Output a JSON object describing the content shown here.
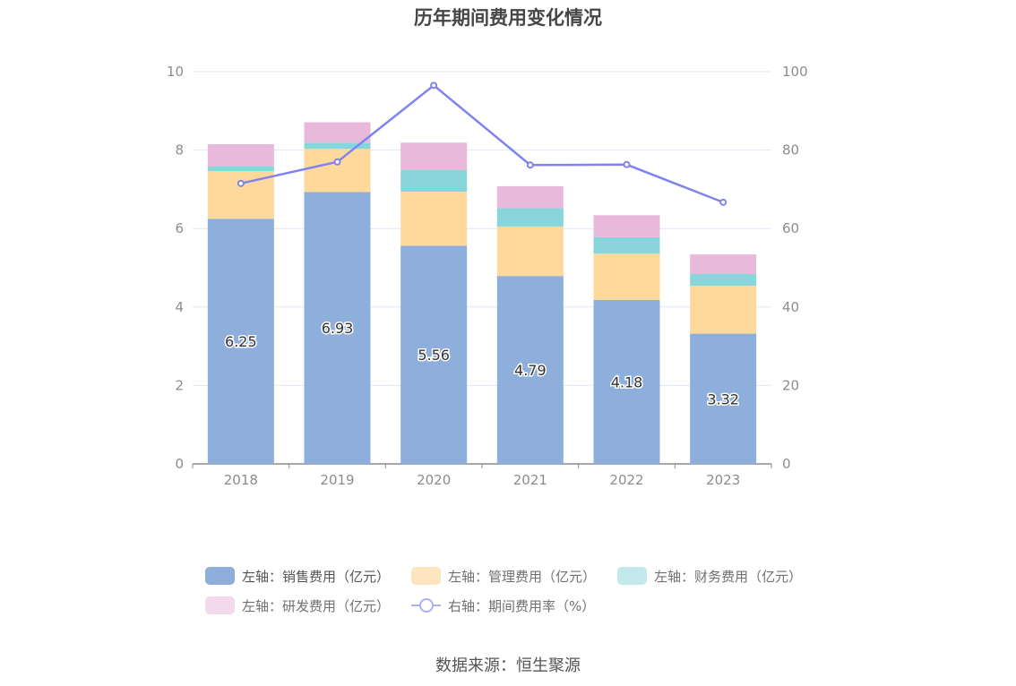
{
  "title": "历年期间费用变化情况",
  "source": "数据来源：恒生聚源",
  "chart_data": {
    "type": "bar",
    "categories": [
      "2018",
      "2019",
      "2020",
      "2021",
      "2022",
      "2023"
    ],
    "left_axis": {
      "ylim": [
        0,
        10
      ],
      "ticks": [
        "0",
        "2",
        "4",
        "6",
        "8",
        "10"
      ]
    },
    "right_axis": {
      "ylim": [
        0,
        100
      ],
      "ticks": [
        "0",
        "20",
        "40",
        "60",
        "80",
        "100"
      ]
    },
    "series": [
      {
        "name": "左轴：销售费用（亿元）",
        "type": "bar",
        "stack": true,
        "color": "#8eaedb",
        "values": [
          6.25,
          6.93,
          5.56,
          4.79,
          4.18,
          3.32
        ],
        "labels": [
          "6.25",
          "6.93",
          "5.56",
          "4.79",
          "4.18",
          "3.32"
        ]
      },
      {
        "name": "左轴：管理费用（亿元）",
        "type": "bar",
        "stack": true,
        "color": "#fed99b",
        "values": [
          1.21,
          1.1,
          1.38,
          1.26,
          1.18,
          1.22
        ]
      },
      {
        "name": "左轴：财务费用（亿元）",
        "type": "bar",
        "stack": true,
        "color": "#88d6dc",
        "values": [
          0.12,
          0.16,
          0.55,
          0.47,
          0.42,
          0.3
        ]
      },
      {
        "name": "左轴：研发费用（亿元）",
        "type": "bar",
        "stack": true,
        "color": "#e8b9da",
        "values": [
          0.57,
          0.52,
          0.7,
          0.56,
          0.56,
          0.5
        ]
      },
      {
        "name": "右轴：期间费用率（%）",
        "type": "line",
        "axis": "right",
        "color": "#7f83f2",
        "values": [
          71.5,
          77,
          96.5,
          76.2,
          76.3,
          66.7
        ]
      }
    ],
    "grid": true,
    "legend_position": "bottom"
  },
  "legend": {
    "row1": [
      {
        "label": "左轴：销售费用（亿元）",
        "color": "#8eaedb"
      },
      {
        "label": "左轴：管理费用（亿元）",
        "color": "#fde5c0"
      },
      {
        "label": "左轴：财务费用（亿元）",
        "color": "#c2e9ec"
      }
    ],
    "row2": [
      {
        "label": "左轴：研发费用（亿元）",
        "color": "#f2d9eb"
      },
      {
        "label": "右轴：期间费用率（%）"
      }
    ]
  }
}
